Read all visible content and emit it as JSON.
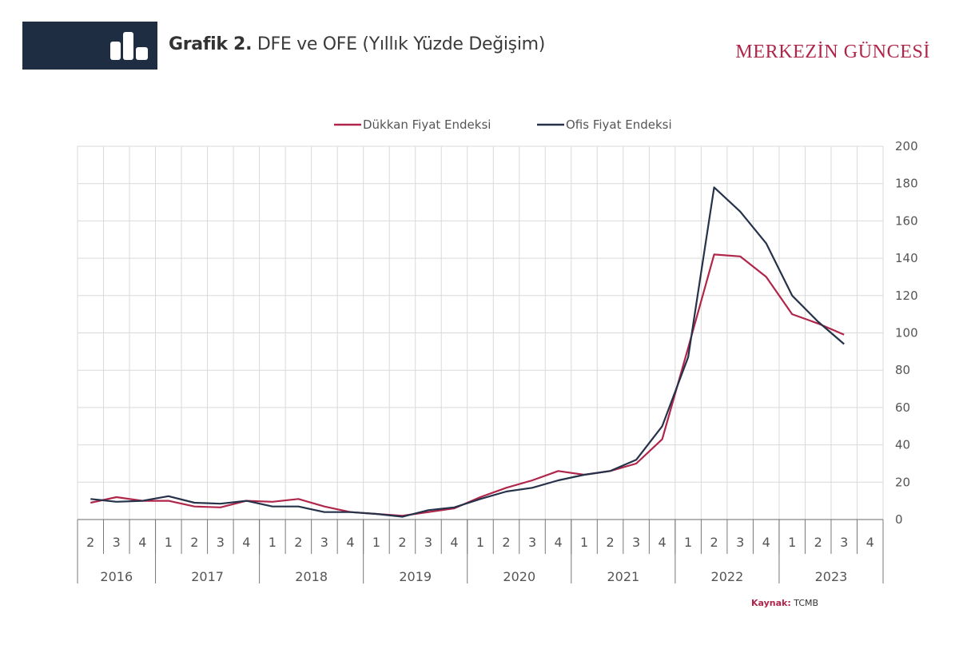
{
  "header": {
    "title_bold": "Grafik 2.",
    "title_rest": " DFE ve OFE (Yıllık Yüzde Değişim)",
    "icon": "bar-chart-icon",
    "brand": "MERKEZİN GÜNCESİ"
  },
  "source": {
    "label": "Kaynak:",
    "value": "TCMB"
  },
  "colors": {
    "dfe": "#b0254a",
    "ofe": "#25324a",
    "header_bg": "#1f2d42",
    "grid": "#d9d9d9"
  },
  "chart_data": {
    "type": "line",
    "title": "DFE ve OFE (Yıllık Yüzde Değişim)",
    "xlabel": "",
    "ylabel": "",
    "ylim": [
      0,
      200
    ],
    "yticks": [
      0,
      20,
      40,
      60,
      80,
      100,
      120,
      140,
      160,
      180,
      200
    ],
    "y_axis_side": "right",
    "grid": true,
    "legend_position": "top-center",
    "x_quarters": [
      "2",
      "3",
      "4",
      "1",
      "2",
      "3",
      "4",
      "1",
      "2",
      "3",
      "4",
      "1",
      "2",
      "3",
      "4",
      "1",
      "2",
      "3",
      "4",
      "1",
      "2",
      "3",
      "4",
      "1",
      "2",
      "3",
      "4",
      "1",
      "2",
      "3",
      "4"
    ],
    "x_years": [
      {
        "label": "2016",
        "span": 3
      },
      {
        "label": "2017",
        "span": 4
      },
      {
        "label": "2018",
        "span": 4
      },
      {
        "label": "2019",
        "span": 4
      },
      {
        "label": "2020",
        "span": 4
      },
      {
        "label": "2021",
        "span": 4
      },
      {
        "label": "2022",
        "span": 4
      },
      {
        "label": "2023",
        "span": 4
      }
    ],
    "series": [
      {
        "name": "Dükkan Fiyat Endeksi",
        "color": "#b0254a",
        "values": [
          9,
          12,
          10,
          10,
          7,
          6.5,
          10,
          9.5,
          11,
          7,
          4,
          3,
          2,
          4,
          6,
          12,
          17,
          21,
          26,
          24,
          26,
          30,
          43,
          92,
          142,
          141,
          130,
          110,
          105,
          99
        ]
      },
      {
        "name": "Ofis Fiyat Endeksi",
        "color": "#25324a",
        "values": [
          11,
          9.5,
          10,
          12.5,
          9,
          8.5,
          10,
          7,
          7,
          4,
          4,
          3,
          1.5,
          5,
          6.5,
          11,
          15,
          17,
          21,
          24,
          26,
          32,
          50,
          87,
          178,
          165,
          148,
          120,
          106,
          94
        ]
      }
    ]
  }
}
